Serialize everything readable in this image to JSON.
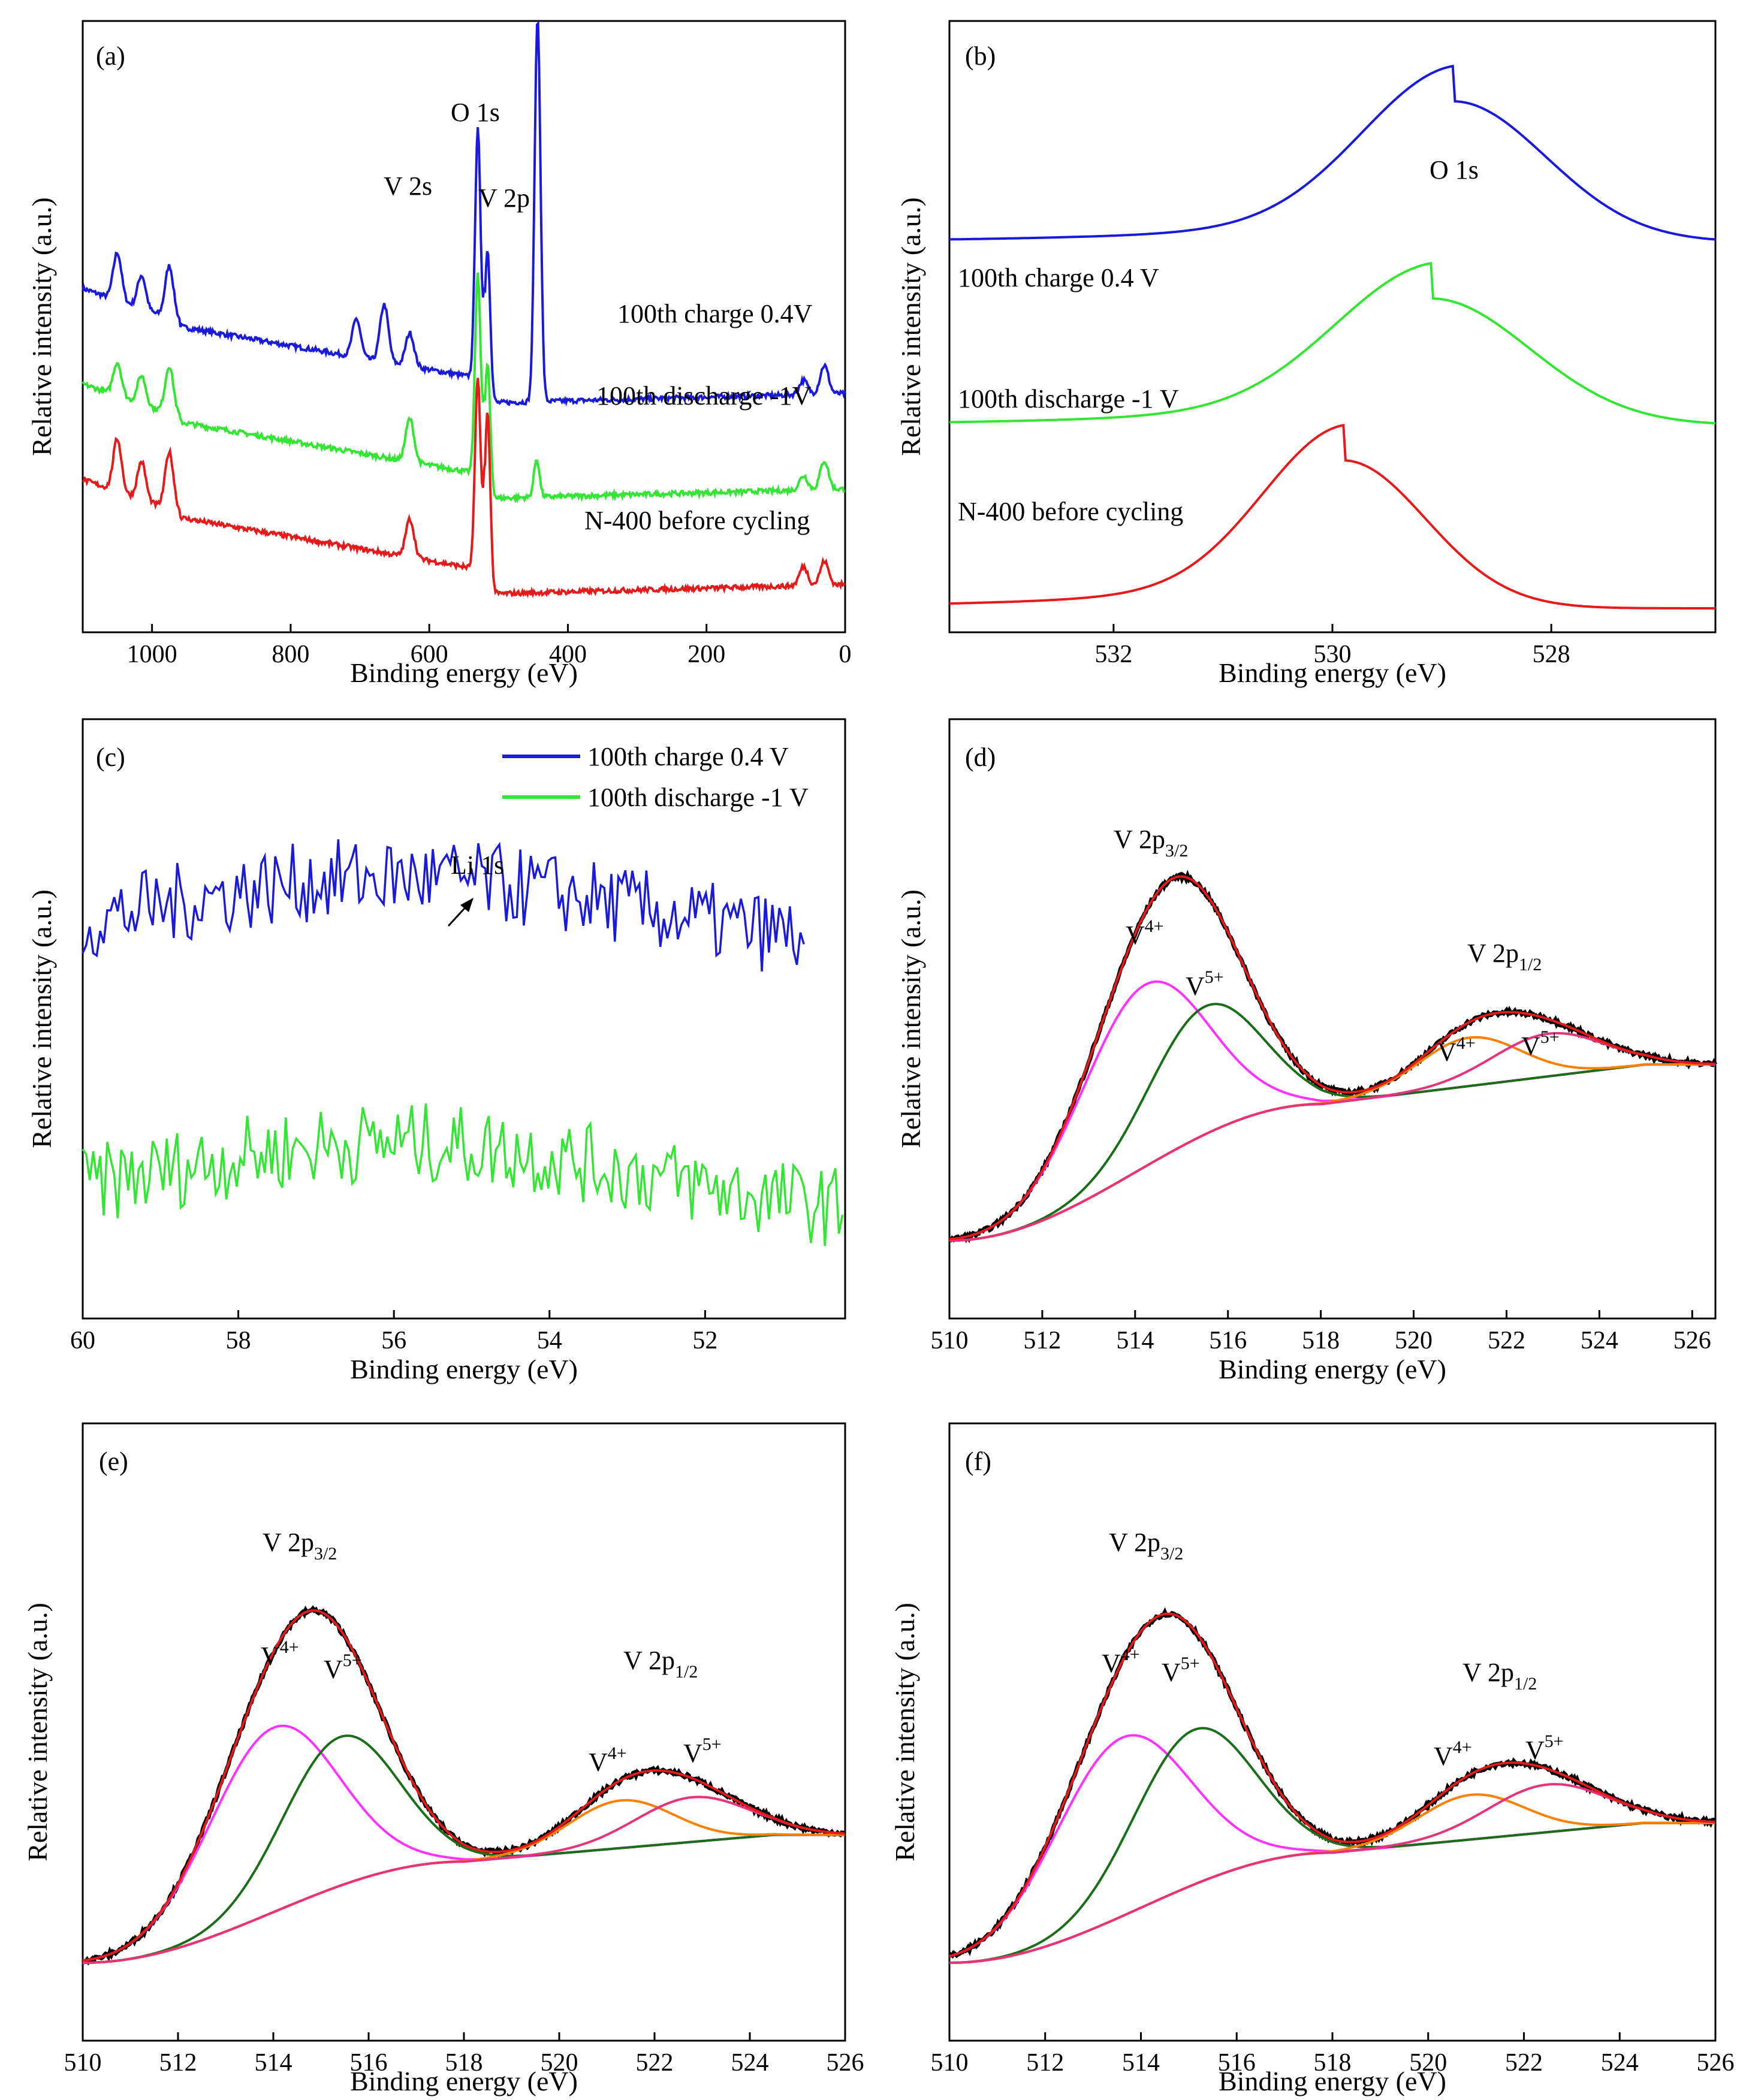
{
  "colors": {
    "blue": "#1a1adc",
    "green": "#33e633",
    "red": "#e61a1a",
    "black": "#000000",
    "orange": "#ff8000",
    "magenta": "#ff33ff",
    "darkgreen": "#1a6e1a",
    "pink": "#e6337a"
  },
  "chart_data": [
    {
      "panel": "(a)",
      "type": "line",
      "xlabel": "Binding energy (eV)",
      "ylabel": "Relative intensity (a.u.)",
      "xlim": [
        1100,
        0
      ],
      "xticks": [
        1000,
        800,
        600,
        400,
        200,
        0
      ],
      "series": [
        {
          "name": "100th charge 0.4V",
          "color": "blue",
          "base": 3.0,
          "tail": 2.5,
          "peaks": [
            [
              1050,
              0.5
            ],
            [
              1015,
              0.35
            ],
            [
              975,
              0.55
            ],
            [
              705,
              0.4
            ],
            [
              665,
              0.6
            ],
            [
              628,
              0.35
            ],
            [
              530,
              2.6
            ],
            [
              516,
              1.6
            ],
            [
              445,
              2.5
            ],
            [
              442,
              1.8
            ],
            [
              60,
              0.15
            ],
            [
              30,
              0.3
            ]
          ]
        },
        {
          "name": "100th discharge -1V",
          "color": "green",
          "base": 2.0,
          "tail": 1.5,
          "peaks": [
            [
              1050,
              0.35
            ],
            [
              1015,
              0.3
            ],
            [
              975,
              0.5
            ],
            [
              628,
              0.45
            ],
            [
              530,
              2.1
            ],
            [
              516,
              1.4
            ],
            [
              445,
              0.4
            ],
            [
              60,
              0.15
            ],
            [
              30,
              0.3
            ]
          ]
        },
        {
          "name": "N-400 before cycling",
          "color": "red",
          "base": 1.0,
          "tail": 0.5,
          "peaks": [
            [
              1050,
              0.55
            ],
            [
              1015,
              0.4
            ],
            [
              975,
              0.6
            ],
            [
              628,
              0.4
            ],
            [
              530,
              2.0
            ],
            [
              516,
              1.9
            ],
            [
              60,
              0.2
            ],
            [
              30,
              0.25
            ]
          ]
        }
      ],
      "annotations": [
        "O 1s",
        "V 2p",
        "V 2s"
      ],
      "series_labels": [
        "100th charge 0.4V",
        "100th discharge -1V",
        "N-400 before cycling"
      ]
    },
    {
      "panel": "(b)",
      "type": "line",
      "xlabel": "Binding energy (eV)",
      "ylabel": "Relative intensity (a.u.)",
      "xlim": [
        533.5,
        526.5
      ],
      "xticks": [
        532,
        530,
        528
      ],
      "series": [
        {
          "name": "100th charge 0.4 V",
          "color": "blue",
          "offset": 2.6,
          "center": 528.9,
          "sigma": 0.85,
          "amp": 1.0
        },
        {
          "name": "100th discharge -1 V",
          "color": "green",
          "offset": 1.3,
          "center": 529.1,
          "sigma": 0.9,
          "amp": 0.9
        },
        {
          "name": "N-400 before cycling",
          "color": "red",
          "offset": 0.0,
          "center": 529.9,
          "sigma": 0.75,
          "amp": 1.05
        }
      ],
      "annotations": [
        "O 1s"
      ],
      "series_labels": [
        "100th charge 0.4 V",
        "100th discharge -1 V",
        "N-400 before cycling"
      ]
    },
    {
      "panel": "(c)",
      "type": "line",
      "xlabel": "Binding energy (eV)",
      "ylabel": "Relative intensity (a.u.)",
      "xlim": [
        60,
        50.2
      ],
      "xticks": [
        60,
        58,
        56,
        54,
        52
      ],
      "series": [
        {
          "name": "100th charge  0.4 V",
          "color": "blue",
          "x_end": 50.7,
          "offset": 1.8
        },
        {
          "name": "100th discharge -1 V",
          "color": "green",
          "x_end": 50.2,
          "offset": 0.0
        }
      ],
      "annotations": [
        "Li 1s"
      ],
      "legend": [
        "100th charge  0.4 V",
        "100th discharge -1 V"
      ]
    },
    {
      "panel": "(d)",
      "type": "line",
      "xlabel": "Binding energy (eV)",
      "ylabel": "Relative intensity (a.u.)",
      "xlim": [
        510,
        526.5
      ],
      "xticks": [
        510,
        512,
        514,
        516,
        518,
        520,
        522,
        524,
        526
      ],
      "components": [
        {
          "name": "V4+ (2p3/2)",
          "color": "magenta",
          "center": 514.2,
          "sigma": 1.35,
          "amp": 0.64
        },
        {
          "name": "V5+ (2p3/2)",
          "color": "darkgreen",
          "center": 515.5,
          "sigma": 1.2,
          "amp": 0.45
        },
        {
          "name": "V4+ (2p1/2)",
          "color": "orange",
          "center": 521.2,
          "sigma": 1.1,
          "amp": 0.17
        },
        {
          "name": "V5+ (2p1/2)",
          "color": "pink",
          "center": 522.9,
          "sigma": 1.2,
          "amp": 0.15
        }
      ],
      "background": {
        "color": "pink",
        "start": 510,
        "end": 525,
        "low": 0.0,
        "mid": 0.48,
        "high": 0.62
      },
      "annotations": [
        "V 2p",
        "3/2",
        "V",
        "4+",
        "V",
        "5+",
        "V 2p",
        "1/2",
        "V",
        "4+",
        "V",
        "5+"
      ]
    },
    {
      "panel": "(e)",
      "type": "line",
      "xlabel": "Binding energy (eV)",
      "ylabel": "Relative intensity (a.u.)",
      "xlim": [
        510,
        526
      ],
      "xticks": [
        510,
        512,
        514,
        516,
        518,
        520,
        522,
        524,
        526
      ],
      "components": [
        {
          "name": "V4+ (2p3/2)",
          "color": "magenta",
          "center": 514.0,
          "sigma": 1.35,
          "amp": 0.62
        },
        {
          "name": "V5+ (2p3/2)",
          "color": "darkgreen",
          "center": 515.4,
          "sigma": 1.2,
          "amp": 0.5
        },
        {
          "name": "V4+ (2p1/2)",
          "color": "orange",
          "center": 521.3,
          "sigma": 1.1,
          "amp": 0.16
        },
        {
          "name": "V5+ (2p1/2)",
          "color": "pink",
          "center": 522.8,
          "sigma": 1.2,
          "amp": 0.15
        }
      ],
      "background": {
        "color": "pink",
        "start": 510,
        "end": 524.5,
        "low": 0.0,
        "mid": 0.34,
        "high": 0.43
      },
      "annotations": [
        "V 2p",
        "3/2",
        "V",
        "4+",
        "V",
        "5+",
        "V 2p",
        "1/2",
        "V",
        "4+",
        "V",
        "5+"
      ]
    },
    {
      "panel": "(f)",
      "type": "line",
      "xlabel": "Binding energy (eV)",
      "ylabel": "Relative intensity (a.u.)",
      "xlim": [
        510,
        526
      ],
      "xticks": [
        510,
        512,
        514,
        516,
        518,
        520,
        522,
        524,
        526
      ],
      "components": [
        {
          "name": "V4+ (2p3/2)",
          "color": "magenta",
          "center": 513.6,
          "sigma": 1.4,
          "amp": 0.6
        },
        {
          "name": "V5+ (2p3/2)",
          "color": "darkgreen",
          "center": 515.1,
          "sigma": 1.25,
          "amp": 0.52
        },
        {
          "name": "V4+ (2p1/2)",
          "color": "orange",
          "center": 520.9,
          "sigma": 1.1,
          "amp": 0.15
        },
        {
          "name": "V5+ (2p1/2)",
          "color": "pink",
          "center": 522.5,
          "sigma": 1.25,
          "amp": 0.16
        }
      ],
      "background": {
        "color": "pink",
        "start": 510,
        "end": 524.5,
        "low": 0.0,
        "mid": 0.37,
        "high": 0.47
      },
      "annotations": [
        "V 2p",
        "3/2",
        "V",
        "4+",
        "V",
        "5+",
        "V 2p",
        "1/2",
        "V",
        "4+",
        "V",
        "5+"
      ]
    }
  ]
}
